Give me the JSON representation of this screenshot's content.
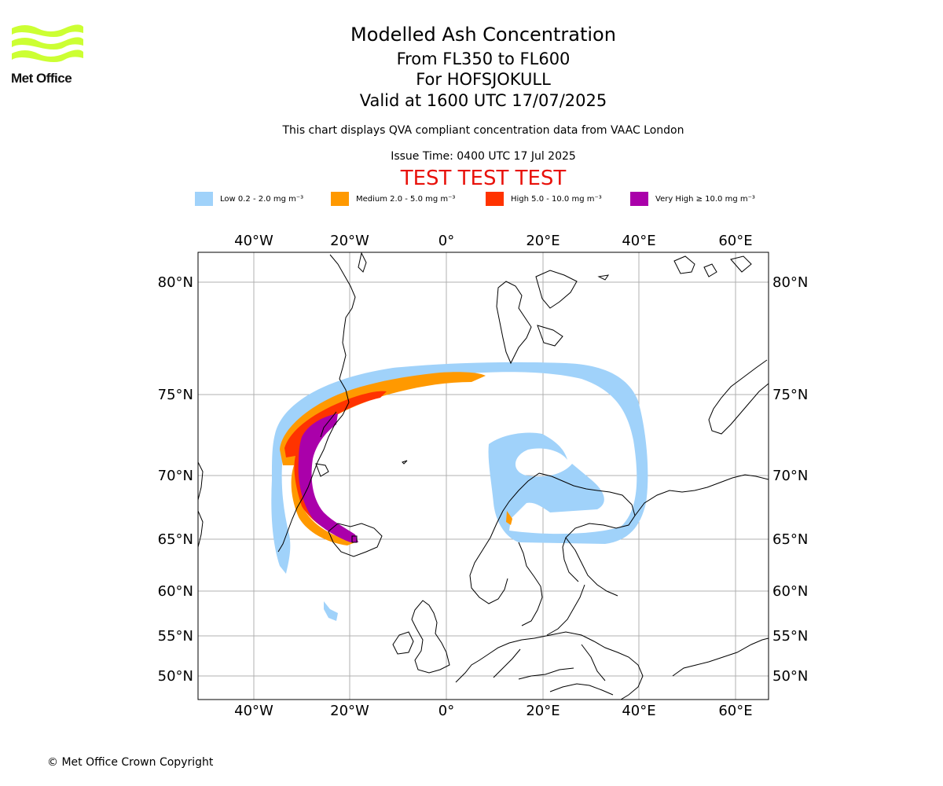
{
  "logo": {
    "name": "Met Office",
    "color": "#ccff33"
  },
  "header": {
    "title": "Modelled Ash Concentration",
    "flight_levels": "From FL350 to FL600",
    "volcano": "For HOFSJOKULL",
    "valid_time": "Valid at 1600 UTC 17/07/2025",
    "note": "This chart displays QVA compliant concentration data from VAAC London",
    "issue_time": "Issue Time: 0400 UTC 17 Jul 2025",
    "test_banner": "TEST TEST TEST",
    "test_color": "#e8110a"
  },
  "legend": [
    {
      "label": "Low 0.2 - 2.0 mg m⁻³",
      "color": "#a0d2fa"
    },
    {
      "label": "Medium 2.0 - 5.0 mg m⁻³",
      "color": "#ff9900"
    },
    {
      "label": "High 5.0 - 10.0 mg m⁻³",
      "color": "#ff3300"
    },
    {
      "label": "Very High ≥ 10.0 mg m⁻³",
      "color": "#aa00aa"
    }
  ],
  "map": {
    "lon_ticks": [
      "40°W",
      "20°W",
      "0°",
      "20°E",
      "40°E",
      "60°E"
    ],
    "lat_ticks": [
      "80°N",
      "75°N",
      "70°N",
      "65°N",
      "60°N",
      "55°N",
      "50°N"
    ],
    "grid": true
  },
  "footer": {
    "copyright": "© Met Office Crown Copyright"
  }
}
